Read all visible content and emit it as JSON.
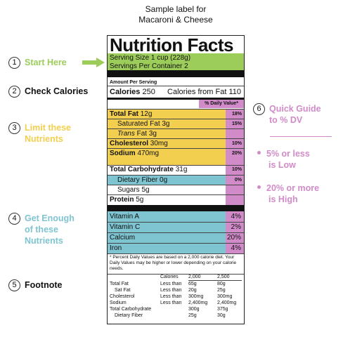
{
  "caption": {
    "line1": "Sample label for",
    "line2": "Macaroni & Cheese"
  },
  "label": {
    "title": "Nutrition Facts",
    "serving_size": "Serving Size 1 cup (228g)",
    "servings_per_container": "Servings Per Container 2",
    "amount_per_serving": "Amount Per Serving",
    "calories_label": "Calories",
    "calories_value": "250",
    "calories_from_fat": "Calories from Fat 110",
    "dv_header": "% Daily Value*",
    "nutrients": [
      {
        "name": "Total Fat",
        "amount": "12g",
        "pct": "18%"
      },
      {
        "name": "Saturated Fat",
        "amount": "3g",
        "pct": "15%"
      },
      {
        "name": "Trans",
        "amount": "Fat 3g",
        "pct": ""
      },
      {
        "name": "Cholesterol",
        "amount": "30mg",
        "pct": "10%"
      },
      {
        "name": "Sodium",
        "amount": "470mg",
        "pct": "20%"
      },
      {
        "name": "Total Carbohydrate",
        "amount": "31g",
        "pct": "10%"
      },
      {
        "name": "Dietary Fiber",
        "amount": "0g",
        "pct": "0%"
      },
      {
        "name": "Sugars",
        "amount": "5g",
        "pct": ""
      },
      {
        "name": "Protein",
        "amount": "5g",
        "pct": ""
      }
    ],
    "vitamins": [
      {
        "name": "Vitamin A",
        "pct": "4%"
      },
      {
        "name": "Vitamin C",
        "pct": "2%"
      },
      {
        "name": "Calcium",
        "pct": "20%"
      },
      {
        "name": "Iron",
        "pct": "4%"
      }
    ],
    "footnote": "* Percent Daily Values are based on a 2,000 calorie diet. Your Daily Values may be higher or lower depending on your calorie needs.",
    "footnote_table": {
      "header": [
        "",
        "Calories",
        "2,000",
        "2,500"
      ],
      "rows": [
        [
          "Total Fat",
          "Less than",
          "65g",
          "80g"
        ],
        [
          "Sat Fat",
          "Less than",
          "20g",
          "25g"
        ],
        [
          "Cholesterol",
          "Less than",
          "300mg",
          "300mg"
        ],
        [
          "Sodium",
          "Less than",
          "2,400mg",
          "2,400mg"
        ],
        [
          "Total Carbohydrate",
          "",
          "300g",
          "375g"
        ],
        [
          "Dietary Fiber",
          "",
          "25g",
          "30g"
        ]
      ]
    }
  },
  "steps": [
    {
      "num": "1",
      "text": "Start Here",
      "color": "#9ccc5a"
    },
    {
      "num": "2",
      "text": "Check Calories",
      "color": "#111111"
    },
    {
      "num": "3",
      "text_line1": "Limit these",
      "text_line2": "Nutrients",
      "color": "#f2cf4e"
    },
    {
      "num": "4",
      "text_line1": "Get Enough",
      "text_line2": "of these",
      "text_line3": "Nutrients",
      "color": "#7ec4d1"
    },
    {
      "num": "5",
      "text": "Footnote",
      "color": "#111111"
    },
    {
      "num": "6",
      "text_line1": "Quick Guide",
      "text_line2": "to % DV",
      "color": "#d18bc8"
    }
  ],
  "guide": {
    "bullet1_line1": "5% or less",
    "bullet1_line2": "is Low",
    "bullet2_line1": "20% or more",
    "bullet2_line2": "is High"
  },
  "icons": {
    "arrow": "right-arrow-icon"
  }
}
